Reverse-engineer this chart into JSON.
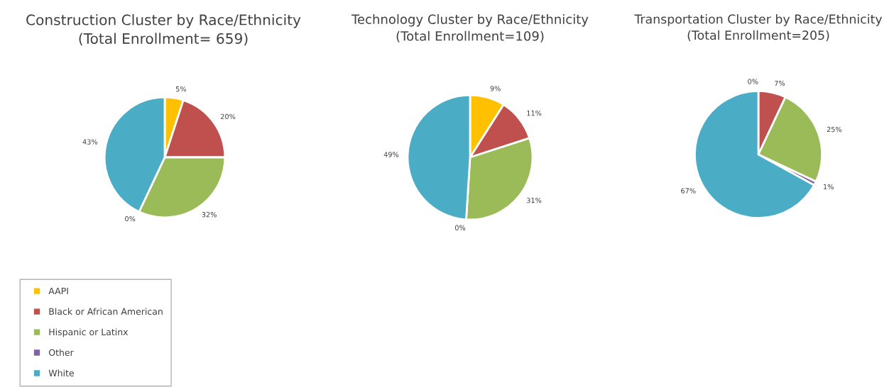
{
  "chart_data": [
    {
      "type": "pie",
      "title": "Construction Cluster by Race/Ethnicity\n(Total Enrollment= 659)",
      "categories": [
        "AAPI",
        "Black or African American",
        "Hispanic or Latinx",
        "Other",
        "White"
      ],
      "values": [
        5,
        20,
        32,
        0,
        43
      ],
      "value_labels": [
        "5%",
        "20%",
        "32%",
        "0%",
        "43%"
      ],
      "colors": [
        "#ffc000",
        "#c0504d",
        "#9bbb59",
        "#8064a2",
        "#4bacc6"
      ],
      "legend": "bottom left"
    },
    {
      "type": "pie",
      "title": "Technology Cluster by Race/Ethnicity\n(Total Enrollment=109)",
      "values": [
        9,
        11,
        31,
        0,
        49
      ],
      "value_labels": [
        "9%",
        "11%",
        "31%",
        "0%",
        "49%"
      ],
      "colors": [
        "#ffc000",
        "#c0504d",
        "#9bbb59",
        "#8064a2",
        "#4bacc6"
      ]
    },
    {
      "type": "pie",
      "title": "Transportation Cluster by Race/Ethnicity\n(Total Enrollment=205)",
      "values": [
        0,
        7,
        25,
        1,
        67
      ],
      "value_labels": [
        "0%",
        "7%",
        "25%",
        "1%",
        "67%"
      ],
      "colors": [
        "#ffc000",
        "#c0504d",
        "#9bbb59",
        "#8064a2",
        "#4bacc6"
      ]
    }
  ]
}
